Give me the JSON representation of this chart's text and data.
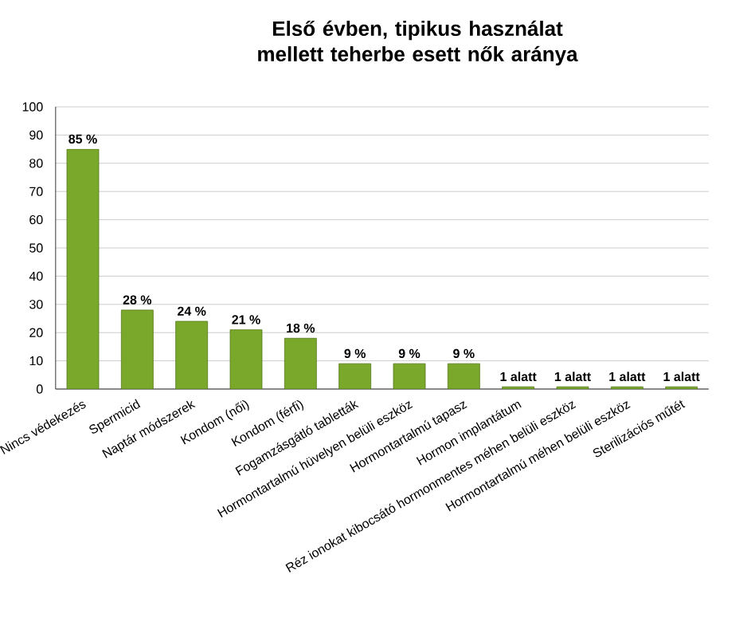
{
  "chart_data": {
    "type": "bar",
    "title": "Első évben, tipikus használat mellett teherbe esett nők aránya",
    "categories": [
      "Nincs védekezés",
      "Spermicid",
      "Naptár módszerek",
      "Kondom (női)",
      "Kondom (férfi)",
      "Fogamzásgátló tabletták",
      "Hormontartalmú hüvelyen belüli eszköz",
      "Hormontartalmú tapasz",
      "Hormon implantátum",
      "Réz ionokat kibocsátó hormonmentes méhen belüli eszköz",
      "Hormontartalmú méhen belüli eszköz",
      "Sterilizációs műtét"
    ],
    "values": [
      85,
      28,
      24,
      21,
      18,
      9,
      9,
      9,
      0.8,
      0.8,
      0.8,
      0.8
    ],
    "value_labels": [
      "85 %",
      "28 %",
      "24 %",
      "21 %",
      "18 %",
      "9 %",
      "9 %",
      "9 %",
      "1 alatt",
      "1 alatt",
      "1 alatt",
      "1 alatt"
    ],
    "color": "#7aa82a",
    "ylim": [
      0,
      100
    ],
    "yticks": [
      0,
      10,
      20,
      30,
      40,
      50,
      60,
      70,
      80,
      90,
      100
    ],
    "grid": "y"
  }
}
